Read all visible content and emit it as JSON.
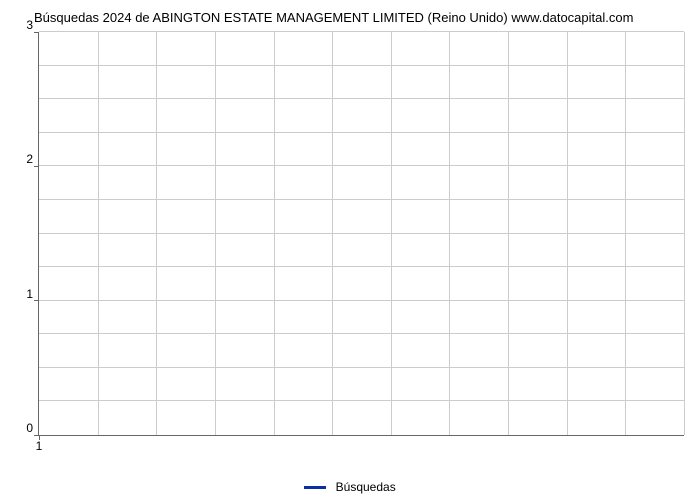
{
  "chart": {
    "type": "line",
    "title": "Búsquedas 2024 de ABINGTON ESTATE MANAGEMENT LIMITED (Reino Unido) www.datocapital.com",
    "title_fontsize": 13,
    "title_color": "#000000",
    "background_color": "#ffffff",
    "plot_border_color": "#666666",
    "grid_color": "#cccccc",
    "series": [
      {
        "label": "Búsquedas",
        "color": "#0b2ea2",
        "points": []
      }
    ],
    "x": {
      "min": 1,
      "max": 12,
      "tick_labels": [
        "1"
      ],
      "tick_positions": [
        1
      ],
      "grid_positions": [
        1,
        2,
        3,
        4,
        5,
        6,
        7,
        8,
        9,
        10,
        11,
        12
      ]
    },
    "y": {
      "min": 0,
      "max": 3,
      "tick_labels": [
        "0",
        "1",
        "2",
        "3"
      ],
      "tick_positions": [
        0,
        1,
        2,
        3
      ],
      "minor_grid_positions": [
        0.25,
        0.5,
        0.75,
        1.25,
        1.5,
        1.75,
        2.25,
        2.5,
        2.75
      ]
    },
    "legend": {
      "label": "Búsquedas",
      "swatch_color": "#0b2ea2"
    }
  }
}
